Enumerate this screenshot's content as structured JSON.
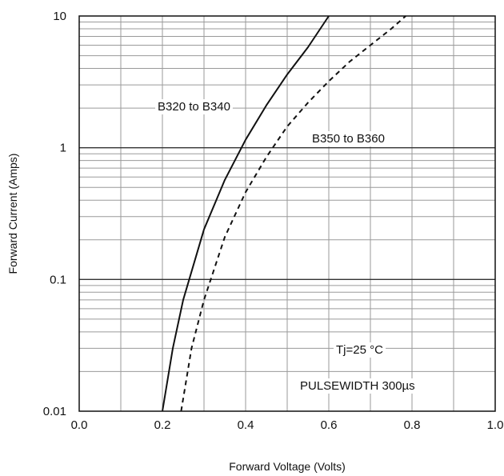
{
  "chart_data": {
    "type": "line",
    "title": "",
    "xlabel": "Forward Voltage (Volts)",
    "ylabel": "Forward Current (Amps)",
    "xlim": [
      0.0,
      1.0
    ],
    "ylim": [
      0.01,
      10
    ],
    "yscale": "log",
    "grid": true,
    "x_ticks": [
      "0.0",
      "0.2",
      "0.4",
      "0.6",
      "0.8",
      "1.0"
    ],
    "y_ticks": [
      "0.01",
      "0.1",
      "1",
      "10"
    ],
    "series": [
      {
        "name": "B320 to B340",
        "style": "solid",
        "color": "#111111",
        "points": [
          [
            0.2,
            0.01
          ],
          [
            0.225,
            0.03
          ],
          [
            0.25,
            0.07
          ],
          [
            0.3,
            0.24
          ],
          [
            0.35,
            0.57
          ],
          [
            0.4,
            1.15
          ],
          [
            0.45,
            2.1
          ],
          [
            0.5,
            3.6
          ],
          [
            0.55,
            5.8
          ],
          [
            0.6,
            10
          ]
        ]
      },
      {
        "name": "B350 to B360",
        "style": "dashed",
        "color": "#111111",
        "points": [
          [
            0.245,
            0.01
          ],
          [
            0.27,
            0.03
          ],
          [
            0.3,
            0.07
          ],
          [
            0.35,
            0.21
          ],
          [
            0.4,
            0.46
          ],
          [
            0.45,
            0.85
          ],
          [
            0.5,
            1.45
          ],
          [
            0.55,
            2.2
          ],
          [
            0.6,
            3.2
          ],
          [
            0.65,
            4.5
          ],
          [
            0.7,
            6.0
          ],
          [
            0.75,
            8.0
          ],
          [
            0.785,
            10
          ]
        ]
      }
    ],
    "annotations": [
      "Tj=25 °C",
      "PULSEWIDTH 300µs"
    ]
  }
}
